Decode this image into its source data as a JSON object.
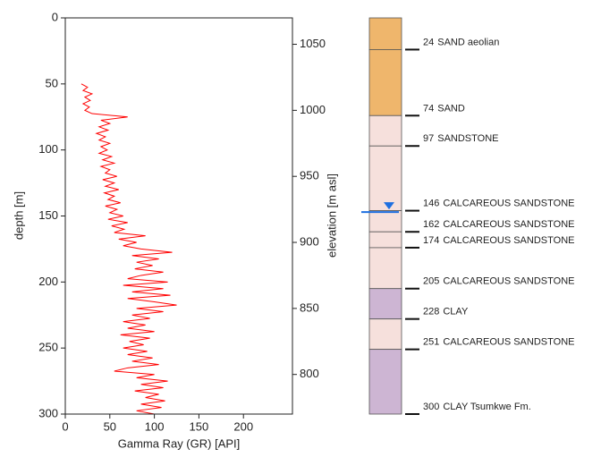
{
  "chart_data": {
    "type": "line",
    "xlabel": "Gamma Ray (GR) [API]",
    "ylabel": "depth [m]",
    "y2label": "elevation [m asl]",
    "xlim": [
      0,
      255
    ],
    "xticks": [
      0,
      50,
      100,
      150,
      200
    ],
    "ylim": [
      300,
      0
    ],
    "yticks": [
      0,
      50,
      100,
      150,
      200,
      250,
      300
    ],
    "y2lim": [
      770,
      1070
    ],
    "y2ticks": [
      800,
      850,
      900,
      950,
      1000,
      1050
    ],
    "series": [
      {
        "color": "#ff0000",
        "depth": [
          50,
          52.5,
          55,
          57.5,
          60,
          62.5,
          65,
          67.5,
          70,
          72.5,
          75,
          77.5,
          80,
          82.5,
          85,
          87.5,
          90,
          92.5,
          95,
          97.5,
          100,
          102.5,
          105,
          107.5,
          110,
          112.5,
          115,
          117.5,
          120,
          122.5,
          125,
          127.5,
          130,
          132.5,
          135,
          137.5,
          140,
          142.5,
          145,
          147.5,
          150,
          152.5,
          155,
          157.5,
          160,
          162.5,
          165,
          167.5,
          170,
          172.5,
          175,
          177.5,
          180,
          182.5,
          185,
          187.5,
          190,
          192.5,
          195,
          197.5,
          200,
          202.5,
          205,
          207.5,
          210,
          212.5,
          215,
          217.5,
          220,
          222.5,
          225,
          227.5,
          230,
          232.5,
          235,
          237.5,
          240,
          242.5,
          245,
          247.5,
          250,
          252.5,
          255,
          257.5,
          260,
          262.5,
          265,
          267.5,
          270,
          272.5,
          275,
          277.5,
          280,
          282.5,
          285,
          287.5,
          290,
          292.5,
          295,
          297.5,
          300
        ],
        "values": [
          18,
          25,
          20,
          30,
          22,
          28,
          20,
          27,
          22,
          30,
          70,
          40,
          50,
          38,
          48,
          35,
          45,
          38,
          50,
          40,
          47,
          38,
          52,
          42,
          55,
          40,
          50,
          45,
          58,
          42,
          55,
          45,
          60,
          44,
          55,
          48,
          62,
          45,
          58,
          50,
          65,
          48,
          70,
          52,
          66,
          55,
          90,
          60,
          80,
          65,
          85,
          120,
          75,
          105,
          80,
          98,
          78,
          110,
          85,
          70,
          115,
          65,
          110,
          75,
          118,
          70,
          100,
          125,
          80,
          110,
          75,
          95,
          65,
          90,
          70,
          100,
          62,
          95,
          72,
          88,
          65,
          92,
          70,
          98,
          75,
          105,
          70,
          55,
          100,
          80,
          115,
          85,
          110,
          78,
          105,
          90,
          112,
          85,
          108,
          80,
          100
        ]
      }
    ],
    "lithology": {
      "top": 0,
      "layers": [
        {
          "bottom": 24,
          "label": "SAND aeolian",
          "color": "#efb66c"
        },
        {
          "bottom": 74,
          "label": "SAND",
          "color": "#efb66c"
        },
        {
          "bottom": 97,
          "label": "SANDSTONE",
          "color": "#f6e0dc"
        },
        {
          "bottom": 146,
          "label": "CALCAREOUS SANDSTONE",
          "color": "#f6e0dc"
        },
        {
          "bottom": 162,
          "label": "CALCAREOUS SANDSTONE",
          "color": "#f6e0dc"
        },
        {
          "bottom": 174,
          "label": "CALCAREOUS SANDSTONE",
          "color": "#f6e0dc"
        },
        {
          "bottom": 205,
          "label": "CALCAREOUS SANDSTONE",
          "color": "#f6e0dc"
        },
        {
          "bottom": 228,
          "label": "CLAY",
          "color": "#cdb5d3"
        },
        {
          "bottom": 251,
          "label": "CALCAREOUS SANDSTONE",
          "color": "#f6e0dc"
        },
        {
          "bottom": 300,
          "label": "CLAY Tsumkwe Fm.",
          "color": "#cdb5d3"
        }
      ],
      "water_level": 147,
      "water_color": "#1e6fe0"
    }
  }
}
